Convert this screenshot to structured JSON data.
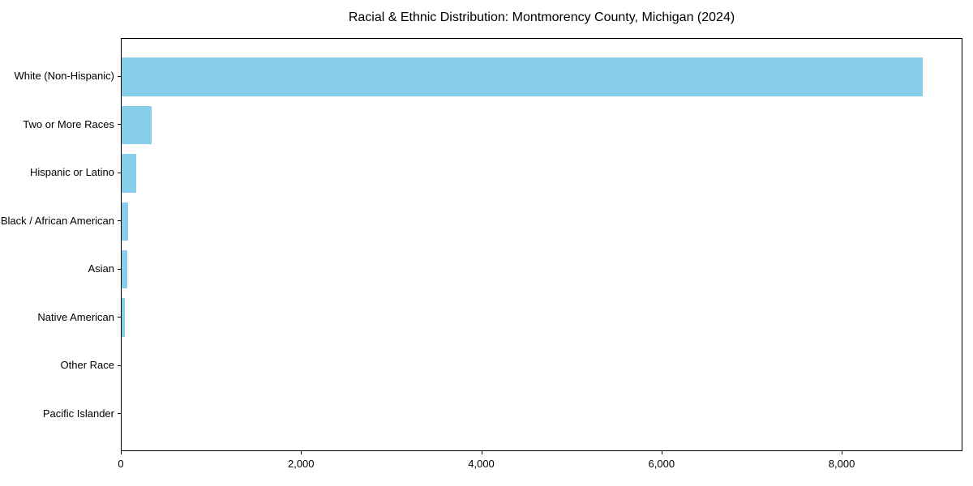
{
  "figure": {
    "background": "#ffffff"
  },
  "chart_data": {
    "type": "bar",
    "orientation": "horizontal",
    "title": "Racial & Ethnic Distribution: Montmorency County, Michigan (2024)",
    "categories": [
      "White (Non-Hispanic)",
      "Two or More Races",
      "Hispanic or Latino",
      "Black / African American",
      "Asian",
      "Native American",
      "Other Race",
      "Pacific Islander"
    ],
    "values": [
      8890,
      330,
      160,
      70,
      60,
      35,
      0,
      0
    ],
    "bar_color": "#87CEEB",
    "axis_color": "#000000",
    "text_color": "#000000",
    "xlim": [
      0,
      9340
    ],
    "xticks": [
      0,
      2000,
      4000,
      6000,
      8000
    ],
    "xtick_labels": [
      "0",
      "2,000",
      "4,000",
      "6,000",
      "8,000"
    ],
    "xlabel": "",
    "ylabel": "",
    "grid": false,
    "legend_position": "none",
    "bar_height_fraction": 0.8
  }
}
